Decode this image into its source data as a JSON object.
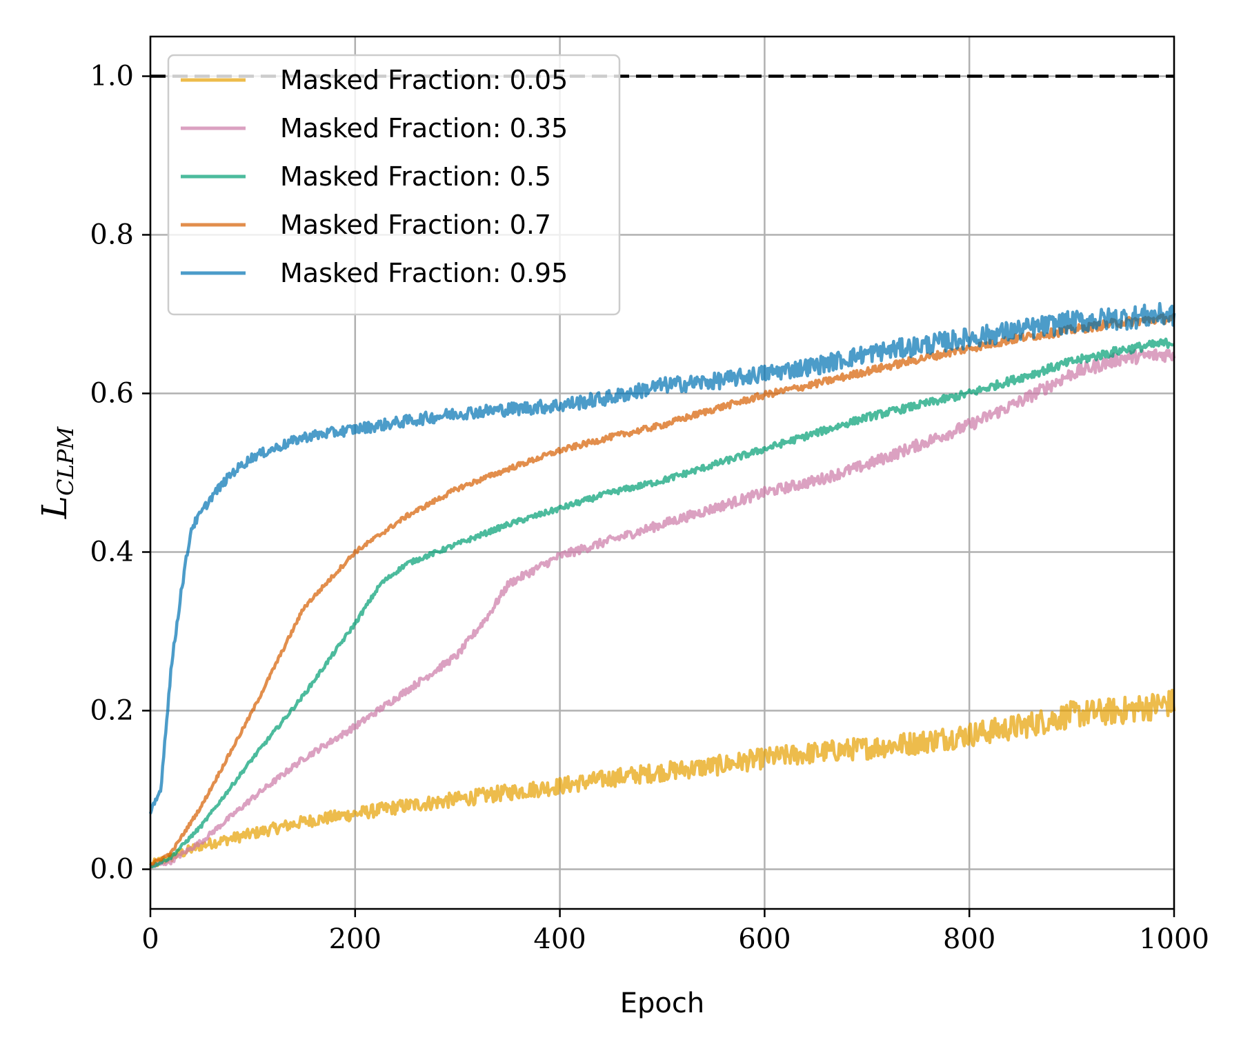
{
  "chart_data": {
    "type": "line",
    "title": "",
    "xlabel": "Epoch",
    "ylabel": "L",
    "ylabel_subscript": "CLPM",
    "xlim": [
      0,
      1000
    ],
    "ylim": [
      -0.05,
      1.05
    ],
    "xticks": [
      0,
      200,
      400,
      600,
      800,
      1000
    ],
    "xtick_labels": [
      "0",
      "200",
      "400",
      "600",
      "800",
      "1000"
    ],
    "yticks": [
      0.0,
      0.2,
      0.4,
      0.6,
      0.8,
      1.0
    ],
    "ytick_labels": [
      "0.0",
      "0.2",
      "0.4",
      "0.6",
      "0.8",
      "1.0"
    ],
    "grid": true,
    "legend_position": "top-left",
    "reference_line": {
      "y": 1.0,
      "style": "dashed",
      "color": "#000000"
    },
    "series": [
      {
        "name": "Masked Fraction: 0.05",
        "color": "#e69f00",
        "noise": 0.012,
        "x": [
          0,
          20,
          50,
          100,
          150,
          200,
          250,
          300,
          350,
          400,
          450,
          500,
          550,
          600,
          650,
          700,
          750,
          800,
          850,
          900,
          950,
          1000
        ],
        "y": [
          0.005,
          0.015,
          0.03,
          0.045,
          0.06,
          0.07,
          0.08,
          0.088,
          0.097,
          0.105,
          0.115,
          0.123,
          0.13,
          0.14,
          0.147,
          0.153,
          0.16,
          0.17,
          0.18,
          0.195,
          0.2,
          0.21
        ]
      },
      {
        "name": "Masked Fraction: 0.35",
        "color": "#cc79a7",
        "noise": 0.006,
        "x": [
          0,
          20,
          50,
          100,
          150,
          200,
          250,
          300,
          330,
          350,
          400,
          450,
          500,
          550,
          600,
          650,
          700,
          750,
          800,
          850,
          900,
          950,
          1000
        ],
        "y": [
          0.003,
          0.01,
          0.035,
          0.09,
          0.14,
          0.18,
          0.225,
          0.27,
          0.32,
          0.36,
          0.395,
          0.415,
          0.435,
          0.455,
          0.475,
          0.49,
          0.51,
          0.535,
          0.56,
          0.59,
          0.625,
          0.645,
          0.65
        ]
      },
      {
        "name": "Masked Fraction: 0.5",
        "color": "#009e73",
        "noise": 0.004,
        "x": [
          0,
          20,
          50,
          100,
          150,
          200,
          225,
          250,
          300,
          350,
          400,
          450,
          500,
          550,
          600,
          650,
          700,
          750,
          800,
          850,
          900,
          950,
          1000
        ],
        "y": [
          0.003,
          0.015,
          0.055,
          0.14,
          0.22,
          0.31,
          0.36,
          0.385,
          0.41,
          0.435,
          0.455,
          0.475,
          0.49,
          0.51,
          0.53,
          0.55,
          0.57,
          0.585,
          0.6,
          0.62,
          0.64,
          0.655,
          0.665
        ]
      },
      {
        "name": "Masked Fraction: 0.7",
        "color": "#d55e00",
        "noise": 0.004,
        "x": [
          0,
          20,
          50,
          100,
          150,
          200,
          250,
          300,
          350,
          400,
          450,
          500,
          550,
          600,
          650,
          700,
          750,
          800,
          850,
          900,
          950,
          1000
        ],
        "y": [
          0.006,
          0.02,
          0.08,
          0.2,
          0.33,
          0.4,
          0.445,
          0.48,
          0.505,
          0.528,
          0.545,
          0.56,
          0.58,
          0.598,
          0.612,
          0.628,
          0.643,
          0.657,
          0.67,
          0.68,
          0.69,
          0.695
        ]
      },
      {
        "name": "Masked Fraction: 0.95",
        "color": "#0072b2",
        "noise": 0.01,
        "x": [
          0,
          10,
          20,
          30,
          40,
          60,
          80,
          100,
          150,
          200,
          250,
          300,
          350,
          400,
          450,
          500,
          550,
          600,
          650,
          700,
          750,
          800,
          850,
          900,
          950,
          1000
        ],
        "y": [
          0.07,
          0.1,
          0.25,
          0.35,
          0.43,
          0.47,
          0.5,
          0.52,
          0.545,
          0.555,
          0.565,
          0.575,
          0.58,
          0.585,
          0.595,
          0.61,
          0.615,
          0.625,
          0.635,
          0.65,
          0.66,
          0.67,
          0.68,
          0.69,
          0.695,
          0.7
        ]
      }
    ]
  }
}
